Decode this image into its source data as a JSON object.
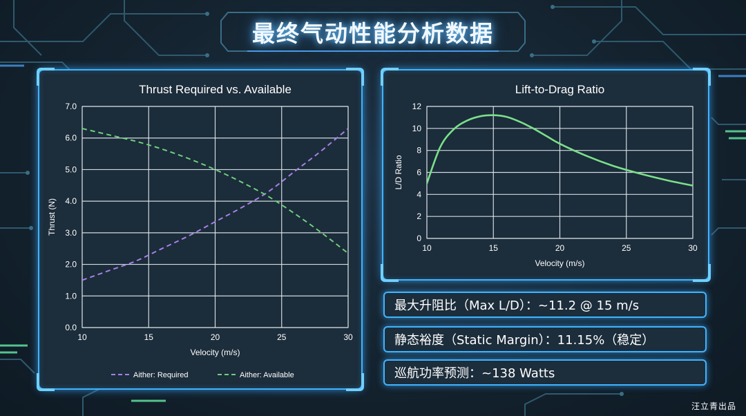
{
  "page": {
    "title": "最终气动性能分析数据",
    "credit": "汪立青出品"
  },
  "info": {
    "max_ld": "最大升阻比（Max L/D）：~11.2 @ 15 m/s",
    "static_margin": "静态裕度（Static Margin）：11.15%（稳定）",
    "cruise_power": "巡航功率预测：~138 Watts"
  },
  "colors": {
    "required": "#a880e6",
    "available": "#6fcf7d",
    "ld_line": "#7be08a",
    "grid": "#ffffff",
    "plot_bg": "#ffffff"
  },
  "chart_data": [
    {
      "type": "line",
      "title": "Thrust Required vs. Available",
      "xlabel": "Velocity (m/s)",
      "ylabel": "Thrust (N)",
      "xlim": [
        10,
        30
      ],
      "ylim": [
        0,
        7
      ],
      "xticks": [
        10,
        15,
        20,
        25,
        30
      ],
      "xtick_labels": [
        "10",
        "15",
        "20",
        "25",
        "30"
      ],
      "yticks": [
        0,
        1,
        2,
        3,
        4,
        5,
        6,
        7
      ],
      "ytick_labels": [
        "0.0",
        "1.0",
        "2.0",
        "3.0",
        "4.0",
        "5.0",
        "6.0",
        "7.0"
      ],
      "grid": true,
      "legend": "bottom",
      "series": [
        {
          "name": "Aither: Required",
          "style": "dashed",
          "color": "#a880e6",
          "x": [
            10,
            12,
            14,
            16,
            18,
            20,
            22,
            24,
            26,
            28,
            30
          ],
          "y": [
            1.5,
            1.8,
            2.1,
            2.5,
            2.9,
            3.35,
            3.8,
            4.3,
            4.95,
            5.6,
            6.3
          ]
        },
        {
          "name": "Aither: Available",
          "style": "dashed",
          "color": "#6fcf7d",
          "x": [
            10,
            12,
            14,
            16,
            18,
            20,
            22,
            24,
            26,
            28,
            30
          ],
          "y": [
            6.3,
            6.1,
            5.9,
            5.65,
            5.35,
            5.0,
            4.6,
            4.15,
            3.6,
            3.0,
            2.35
          ]
        }
      ]
    },
    {
      "type": "line",
      "title": "Lift-to-Drag Ratio",
      "xlabel": "Velocity (m/s)",
      "ylabel": "L/D Ratio",
      "xlim": [
        10,
        30
      ],
      "ylim": [
        0,
        12
      ],
      "xticks": [
        10,
        15,
        20,
        25,
        30
      ],
      "xtick_labels": [
        "10",
        "15",
        "20",
        "25",
        "30"
      ],
      "yticks": [
        0,
        2,
        4,
        6,
        8,
        10,
        12
      ],
      "ytick_labels": [
        "0",
        "2",
        "4",
        "6",
        "8",
        "10",
        "12"
      ],
      "grid": true,
      "series": [
        {
          "style": "solid",
          "color": "#7be08a",
          "x": [
            10,
            11,
            12,
            13,
            14,
            15,
            16,
            17,
            18,
            19,
            20,
            22,
            24,
            26,
            28,
            30
          ],
          "y": [
            5.0,
            8.3,
            9.9,
            10.7,
            11.1,
            11.2,
            11.05,
            10.6,
            10.0,
            9.3,
            8.6,
            7.5,
            6.6,
            5.9,
            5.3,
            4.8
          ]
        }
      ]
    }
  ]
}
